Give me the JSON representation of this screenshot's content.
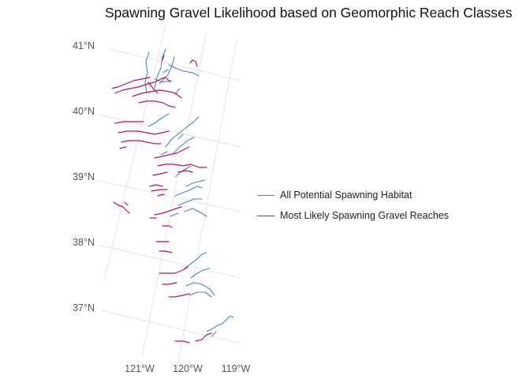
{
  "title": "Spawning Gravel Likelihood based on Geomorphic Reach Classes",
  "axes": {
    "latitude_labels": [
      "41°N",
      "40°N",
      "39°N",
      "38°N",
      "37°N"
    ],
    "longitude_labels": [
      "121°W",
      "120°W",
      "119°W"
    ]
  },
  "legend": {
    "placement": "right",
    "items": [
      {
        "label": "All Potential Spawning Habitat",
        "color": "#4a86c8"
      },
      {
        "label": "Most Likely Spawning Gravel Reaches",
        "color": "#b0156e"
      }
    ]
  },
  "colors": {
    "all_habitat": "#4a86c8",
    "likely_gravel": "#b0156e",
    "graticule": "#e3e3e3"
  },
  "grid": true
}
